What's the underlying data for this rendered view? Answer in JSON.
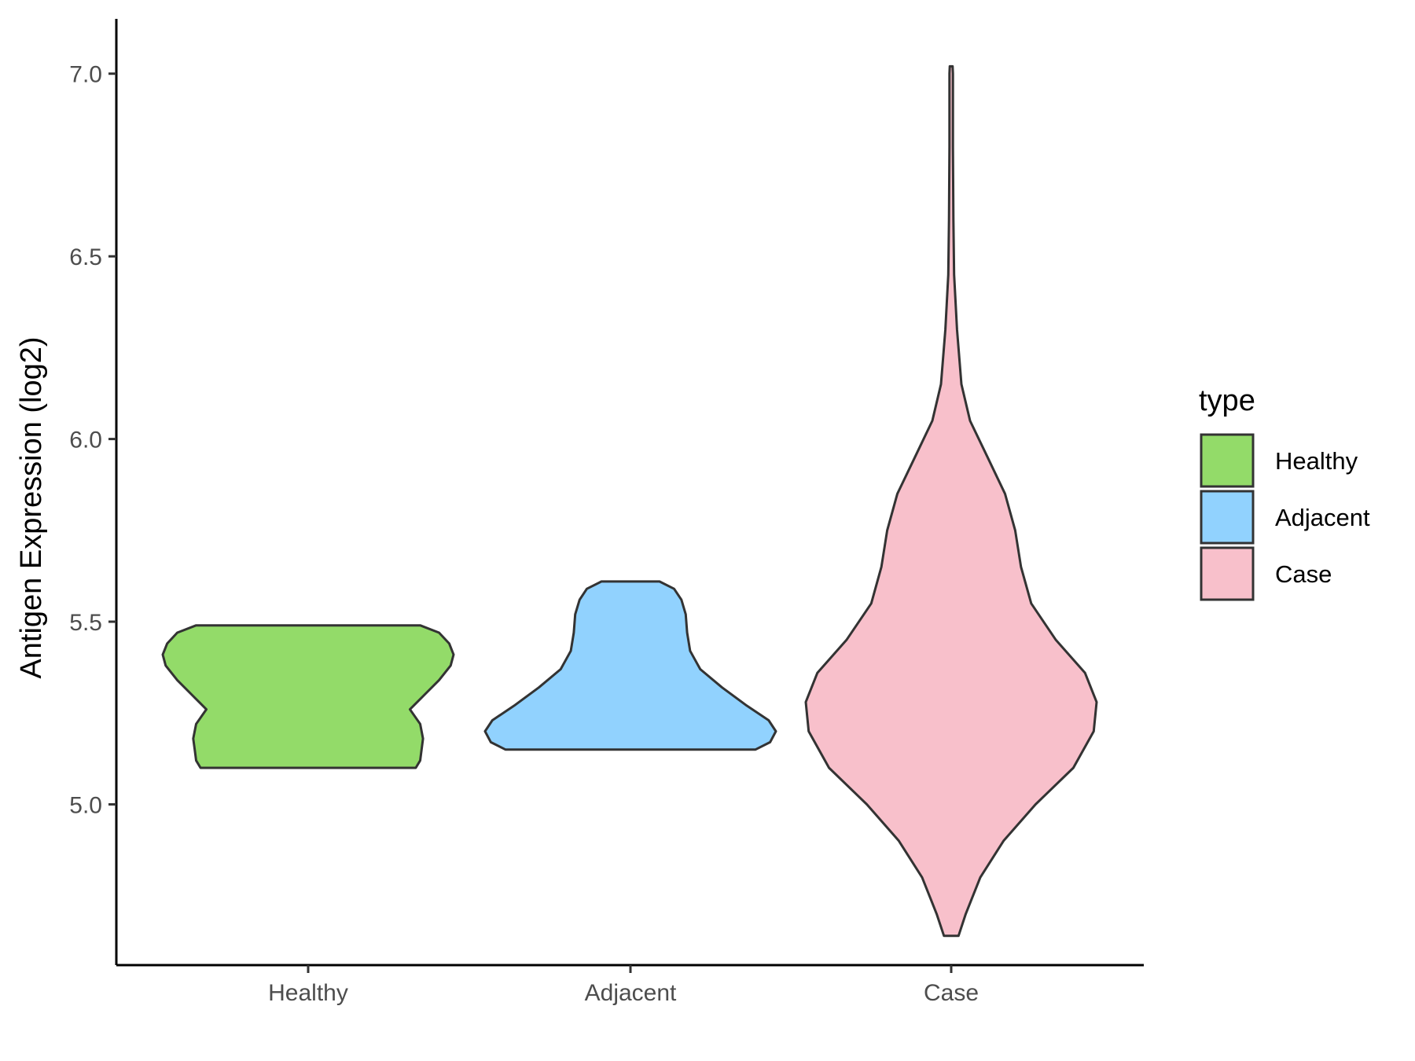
{
  "chart_data": {
    "type": "violin",
    "ylabel": "Antigen Expression (log2)",
    "xlabel": "",
    "ylim": [
      4.56,
      7.15
    ],
    "y_ticks": [
      5.0,
      5.5,
      6.0,
      6.5,
      7.0
    ],
    "y_tick_labels": [
      "5.0",
      "5.5",
      "6.0",
      "6.5",
      "7.0"
    ],
    "categories": [
      "Healthy",
      "Adjacent",
      "Case"
    ],
    "grid": false,
    "legend": {
      "title": "type",
      "position": "right",
      "entries": [
        "Healthy",
        "Adjacent",
        "Case"
      ]
    },
    "series": [
      {
        "name": "Healthy",
        "color": "#93db69",
        "min": 5.1,
        "max": 5.49,
        "profile": [
          [
            5.1,
            0.74
          ],
          [
            5.12,
            0.77
          ],
          [
            5.15,
            0.78
          ],
          [
            5.18,
            0.79
          ],
          [
            5.22,
            0.77
          ],
          [
            5.26,
            0.7
          ],
          [
            5.3,
            0.8
          ],
          [
            5.34,
            0.9
          ],
          [
            5.38,
            0.98
          ],
          [
            5.41,
            1.0
          ],
          [
            5.44,
            0.97
          ],
          [
            5.47,
            0.9
          ],
          [
            5.49,
            0.77
          ]
        ]
      },
      {
        "name": "Adjacent",
        "color": "#91d2fe",
        "min": 5.15,
        "max": 5.61,
        "profile": [
          [
            5.15,
            0.86
          ],
          [
            5.17,
            0.96
          ],
          [
            5.2,
            1.0
          ],
          [
            5.23,
            0.95
          ],
          [
            5.27,
            0.8
          ],
          [
            5.32,
            0.63
          ],
          [
            5.37,
            0.48
          ],
          [
            5.42,
            0.41
          ],
          [
            5.47,
            0.39
          ],
          [
            5.52,
            0.38
          ],
          [
            5.56,
            0.35
          ],
          [
            5.59,
            0.3
          ],
          [
            5.61,
            0.2
          ]
        ]
      },
      {
        "name": "Case",
        "color": "#f8c0cb",
        "min": 4.64,
        "max": 7.02,
        "profile": [
          [
            4.64,
            0.05
          ],
          [
            4.7,
            0.1
          ],
          [
            4.8,
            0.2
          ],
          [
            4.9,
            0.36
          ],
          [
            5.0,
            0.58
          ],
          [
            5.1,
            0.84
          ],
          [
            5.2,
            0.98
          ],
          [
            5.28,
            1.0
          ],
          [
            5.36,
            0.92
          ],
          [
            5.45,
            0.72
          ],
          [
            5.55,
            0.55
          ],
          [
            5.65,
            0.48
          ],
          [
            5.75,
            0.44
          ],
          [
            5.85,
            0.37
          ],
          [
            5.95,
            0.25
          ],
          [
            6.05,
            0.13
          ],
          [
            6.15,
            0.07
          ],
          [
            6.3,
            0.04
          ],
          [
            6.45,
            0.02
          ],
          [
            6.6,
            0.015
          ],
          [
            6.8,
            0.012
          ],
          [
            7.0,
            0.012
          ],
          [
            7.02,
            0.01
          ]
        ]
      }
    ]
  }
}
